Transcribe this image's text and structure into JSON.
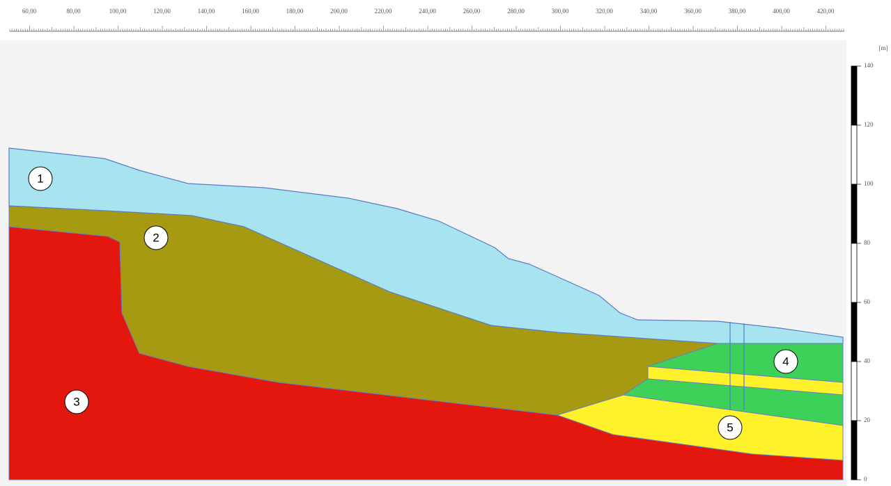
{
  "top_ruler": {
    "labels": [
      "60,00",
      "80,00",
      "100,00",
      "120,00",
      "140,00",
      "160,00",
      "180,00",
      "200,00",
      "220,00",
      "240,00",
      "260,00",
      "280,00",
      "300,00",
      "320,00",
      "340,00",
      "360,00",
      "380,00",
      "400,00",
      "420,00"
    ]
  },
  "right_scale": {
    "unit": "[m]",
    "labels": [
      "140",
      "120",
      "100",
      "80",
      "60",
      "40",
      "20",
      "0"
    ]
  },
  "layers": [
    {
      "label": "1"
    },
    {
      "label": "2"
    },
    {
      "label": "3"
    },
    {
      "label": "4"
    },
    {
      "label": "5"
    }
  ]
}
